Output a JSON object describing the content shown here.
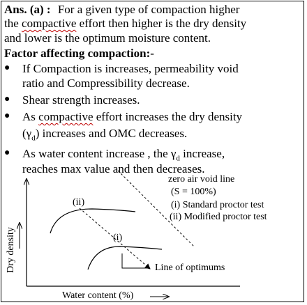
{
  "answer": {
    "prefix": "Ans. (a) :",
    "line1_rest": "For a given type of compaction higher",
    "line2_a": "the ",
    "line2_word": "compactive",
    "line2_b": " effort then higher is the dry density",
    "line3": "and lower is the optimum moisture content."
  },
  "factors": {
    "heading": "Factor affecting compaction:-",
    "items": [
      {
        "line1": "If Compaction is increases, permeability void",
        "line2": "ratio and  Compressibility decrease."
      },
      {
        "line1": "Shear strength increases."
      },
      {
        "line1_a": "As ",
        "line1_word": "compactive",
        "line1_b": " effort increases the dry density",
        "line2_a": "(",
        "line2_sym": "γ",
        "line2_sub": "d",
        "line2_b": ") increases and OMC decreases."
      },
      {
        "line1_a": "As water content increase , the ",
        "line1_sym": "γ",
        "line1_sub": "d",
        "line1_b": " increase,",
        "line2": "reaches max value and then decreases."
      }
    ]
  },
  "diagram": {
    "y_label": "Dry density",
    "x_label": "Water content (%)",
    "zero_air_void_label": "zero air void line",
    "s_label": "(S = 100%)",
    "legend_i": "(i)  Standard proctor test",
    "legend_ii": "(ii) Modified proctor test",
    "curve_i_label": "(i)",
    "curve_ii_label": "(ii)",
    "optimums_label": "Line of optimums"
  }
}
